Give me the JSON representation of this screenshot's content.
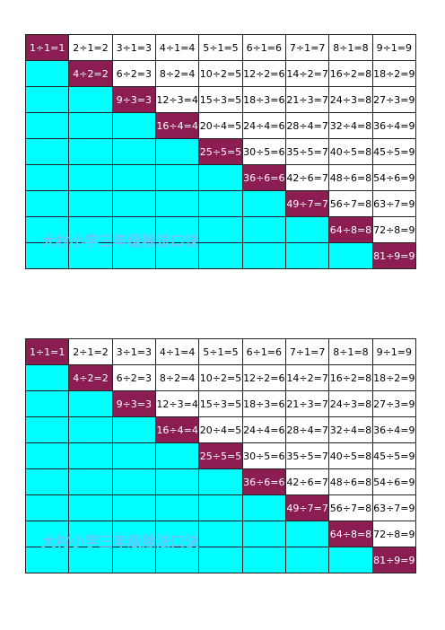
{
  "tables": [
    {
      "rows": [
        [
          "1÷1=1",
          "2÷1=2",
          "3÷1=3",
          "4÷1=4",
          "5÷1=5",
          "6÷1=6",
          "7÷1=7",
          "8÷1=8",
          "9÷1=9"
        ],
        [
          "",
          "4÷2=2",
          "6÷2=3",
          "8÷2=4",
          "10÷2=5",
          "12÷2=6",
          "14÷2=7",
          "16÷2=8",
          "18÷2=9"
        ],
        [
          "",
          "",
          "9÷3=3",
          "12÷3=4",
          "15÷3=5",
          "18÷3=6",
          "21÷3=7",
          "24÷3=8",
          "27÷3=9"
        ],
        [
          "",
          "",
          "",
          "16÷4=4",
          "20÷4=5",
          "24÷4=6",
          "28÷4=7",
          "32÷4=8",
          "36÷4=9"
        ],
        [
          "",
          "",
          "",
          "",
          "25÷5=5",
          "30÷5=6",
          "35÷5=7",
          "40÷5=8",
          "45÷5=9"
        ],
        [
          "",
          "",
          "",
          "",
          "",
          "36÷6=6",
          "42÷6=7",
          "48÷6=8",
          "54÷6=9"
        ],
        [
          "",
          "",
          "",
          "",
          "",
          "",
          "49÷7=7",
          "56÷7=8",
          "63÷7=9"
        ],
        [
          "",
          "",
          "",
          "",
          "",
          "",
          "",
          "64÷8=8",
          "72÷8=9"
        ],
        [
          "",
          "",
          "",
          "",
          "",
          "",
          "",
          "",
          "81÷9=9"
        ]
      ]
    },
    {
      "rows": [
        [
          "1÷1=1",
          "2÷1=2",
          "3÷1=3",
          "4÷1=4",
          "5÷1=5",
          "6÷1=6",
          "7÷1=7",
          "8÷1=8",
          "9÷1=9"
        ],
        [
          "",
          "4÷2=2",
          "6÷2=3",
          "8÷2=4",
          "10÷2=5",
          "12÷2=6",
          "14÷2=7",
          "16÷2=8",
          "18÷2=9"
        ],
        [
          "",
          "",
          "9÷3=3",
          "12÷3=4",
          "15÷3=5",
          "18÷3=6",
          "21÷3=7",
          "24÷3=8",
          "27÷3=9"
        ],
        [
          "",
          "",
          "",
          "16÷4=4",
          "20÷4=5",
          "24÷4=6",
          "28÷4=7",
          "32÷4=8",
          "36÷4=9"
        ],
        [
          "",
          "",
          "",
          "",
          "25÷5=5",
          "30÷5=6",
          "35÷5=7",
          "40÷5=8",
          "45÷5=9"
        ],
        [
          "",
          "",
          "",
          "",
          "",
          "36÷6=6",
          "42÷6=7",
          "48÷6=8",
          "54÷6=9"
        ],
        [
          "",
          "",
          "",
          "",
          "",
          "",
          "49÷7=7",
          "56÷7=8",
          "63÷7=9"
        ],
        [
          "",
          "",
          "",
          "",
          "",
          "",
          "",
          "64÷8=8",
          "72÷8=9"
        ],
        [
          "",
          "",
          "",
          "",
          "",
          "",
          "",
          "",
          "81÷9=9"
        ]
      ]
    }
  ],
  "watermark": "大村小学三年级除法口诀",
  "colors": {
    "diagonal": "#8b1d52",
    "lower": "#00ffff",
    "upper": "#ffffff",
    "watermark": "#64c8ff"
  }
}
